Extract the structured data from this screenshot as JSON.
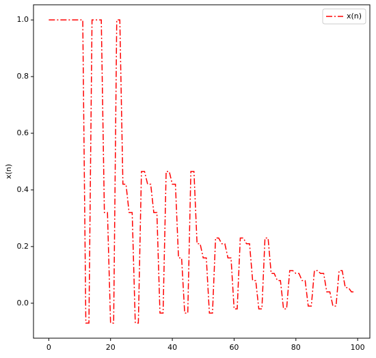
{
  "chart_data": {
    "type": "line",
    "ylabel": "x(n)",
    "x": [
      0,
      1,
      2,
      3,
      4,
      5,
      6,
      7,
      8,
      9,
      10,
      11,
      12,
      13,
      14,
      15,
      16,
      17,
      18,
      19,
      20,
      21,
      22,
      23,
      24,
      25,
      26,
      27,
      28,
      29,
      30,
      31,
      32,
      33,
      34,
      35,
      36,
      37,
      38,
      39,
      40,
      41,
      42,
      43,
      44,
      45,
      46,
      47,
      48,
      49,
      50,
      51,
      52,
      53,
      54,
      55,
      56,
      57,
      58,
      59,
      60,
      61,
      62,
      63,
      64,
      65,
      66,
      67,
      68,
      69,
      70,
      71,
      72,
      73,
      74,
      75,
      76,
      77,
      78,
      79,
      80,
      81,
      82,
      83,
      84,
      85,
      86,
      87,
      88,
      89,
      90,
      91,
      92,
      93,
      94,
      95,
      96,
      97,
      98,
      99
    ],
    "series": [
      {
        "name": "x(n)",
        "color": "#ff0000",
        "linestyle": "dashdot",
        "values": [
          1,
          1,
          1,
          1,
          1,
          1,
          1,
          1,
          1,
          1,
          1,
          1,
          -0.07,
          -0.07,
          1,
          1,
          1,
          1,
          0.32,
          0.32,
          -0.07,
          -0.07,
          1,
          1,
          0.42,
          0.42,
          0.32,
          0.32,
          -0.07,
          -0.07,
          0.465,
          0.465,
          0.42,
          0.42,
          0.32,
          0.32,
          -0.035,
          -0.035,
          0.465,
          0.465,
          0.42,
          0.42,
          0.16,
          0.16,
          -0.035,
          -0.035,
          0.465,
          0.465,
          0.21,
          0.21,
          0.16,
          0.16,
          -0.035,
          -0.035,
          0.23,
          0.23,
          0.21,
          0.21,
          0.16,
          0.16,
          -0.02,
          -0.02,
          0.23,
          0.23,
          0.21,
          0.21,
          0.08,
          0.08,
          -0.02,
          -0.02,
          0.23,
          0.23,
          0.105,
          0.105,
          0.08,
          0.08,
          -0.02,
          -0.02,
          0.115,
          0.115,
          0.105,
          0.105,
          0.08,
          0.08,
          -0.01,
          -0.01,
          0.115,
          0.115,
          0.105,
          0.105,
          0.04,
          0.04,
          -0.01,
          -0.01,
          0.115,
          0.115,
          0.055,
          0.055,
          0.04,
          0.04
        ]
      }
    ],
    "xlim": [
      -4.95,
      103.95
    ],
    "xticks": [
      0,
      20,
      40,
      60,
      80,
      100
    ],
    "ylim": [
      -0.1235,
      1.0535
    ],
    "yticks": [
      {
        "value": 0,
        "label": "0.0"
      },
      0.2,
      0.4,
      0.6,
      0.8,
      {
        "value": 1,
        "label": "1.0"
      }
    ],
    "legend": "upper right",
    "grid": false
  }
}
